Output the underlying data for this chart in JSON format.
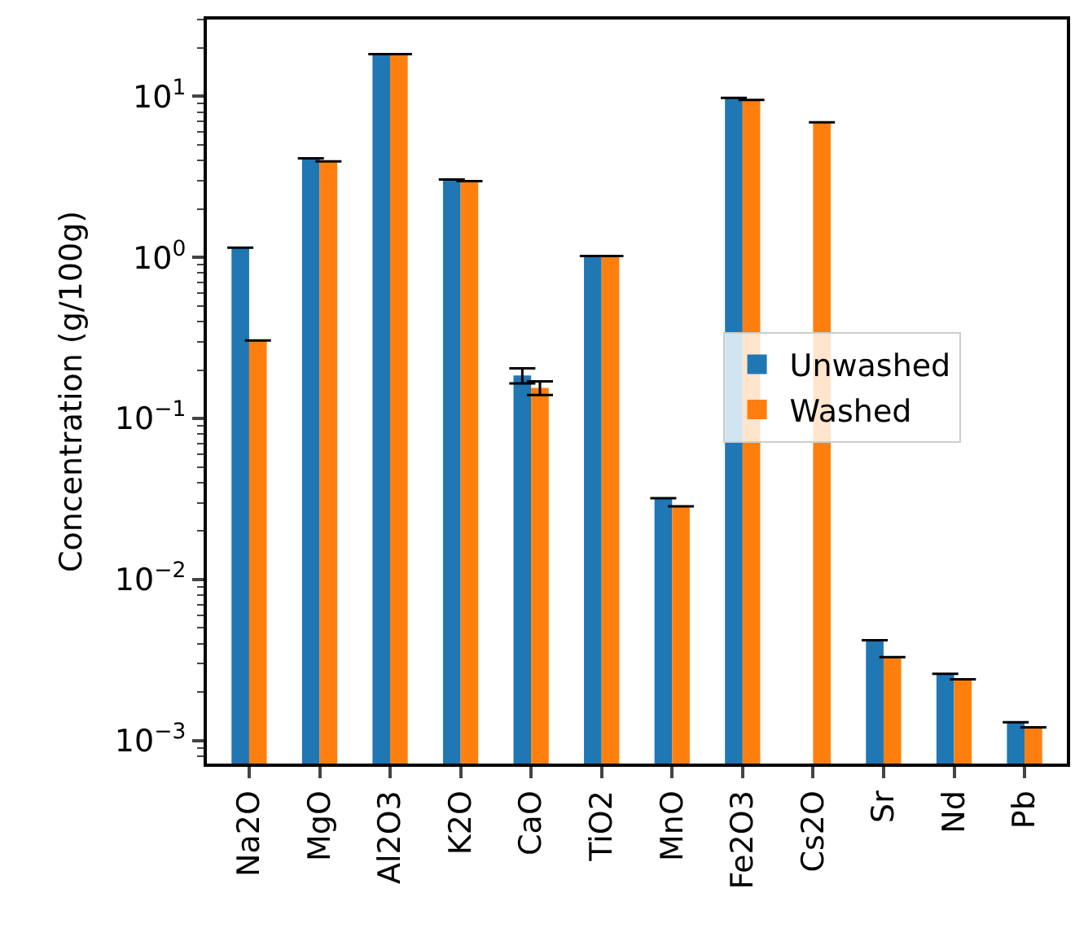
{
  "chart_data": {
    "type": "bar",
    "ylabel": "Concentration (g/100g)",
    "categories": [
      "Na2O",
      "MgO",
      "Al2O3",
      "K2O",
      "CaO",
      "TiO2",
      "MnO",
      "Fe2O3",
      "Cs2O",
      "Sr",
      "Nd",
      "Pb"
    ],
    "series": [
      {
        "name": "Unwashed",
        "color": "#1f77b4",
        "values": [
          1.15,
          4.13,
          18.3,
          3.05,
          0.185,
          1.02,
          0.032,
          9.8,
          null,
          0.0042,
          0.0026,
          0.0013
        ],
        "errors": [
          0,
          0,
          0,
          0,
          0.02,
          0,
          0,
          0,
          null,
          0,
          0,
          0
        ]
      },
      {
        "name": "Washed",
        "color": "#ff7f0e",
        "values": [
          0.305,
          3.95,
          18.3,
          2.98,
          0.155,
          1.02,
          0.0285,
          9.5,
          6.9,
          0.0033,
          0.0024,
          0.00121
        ],
        "errors": [
          0,
          0,
          0,
          0,
          0.015,
          0,
          0,
          0,
          0,
          0,
          0,
          0
        ]
      }
    ],
    "log": true,
    "ylim": [
      0.00072,
      30
    ],
    "yticks": [
      {
        "value": 0.001,
        "label": "10$^{−3}$"
      },
      {
        "value": 0.01,
        "label": "10$^{−2}$"
      },
      {
        "value": 0.1,
        "label": "10$^{−1}$"
      },
      {
        "value": 1,
        "label": "10$^{0}$"
      },
      {
        "value": 10,
        "label": "10$^{1}$"
      }
    ],
    "legend": "right"
  }
}
